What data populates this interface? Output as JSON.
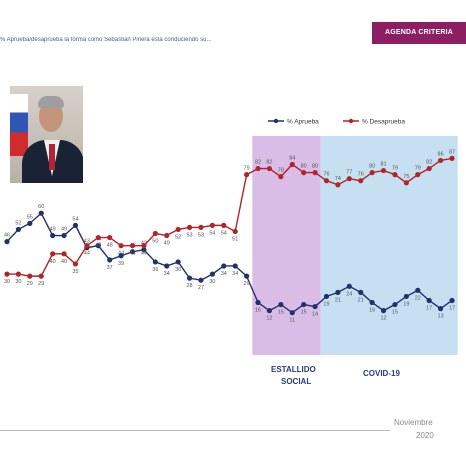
{
  "header": {
    "badge": "AGENDA CRITERIA",
    "subtitle": "% Aprueba/desaprueba la forma como Sebastián Piñera está conduciendo su..."
  },
  "footer": {
    "date_month": "Noviembre",
    "date_year": "2020"
  },
  "colors": {
    "aprueba": "#23306e",
    "desaprueba": "#b0242a",
    "estallido_band": "#d9bde6",
    "covid_band": "#c6e0f1",
    "badge": "#8c1f63"
  },
  "chart_data": {
    "type": "line",
    "legend_position": "top-right",
    "grid": false,
    "x": [
      1,
      2,
      3,
      4,
      5,
      6,
      7,
      8,
      9,
      10,
      11,
      12,
      13,
      14,
      15,
      16,
      17,
      18,
      19,
      20,
      21,
      22,
      23,
      24,
      25,
      26,
      27,
      28,
      29,
      30,
      31,
      32,
      33,
      34,
      35,
      36,
      37,
      38,
      39,
      40
    ],
    "series": [
      {
        "name": "% Aprueba",
        "color": "#23306e",
        "values": [
          46,
          52,
          55,
          60,
          49,
          49,
          54,
          43,
          44,
          37,
          39,
          41,
          42,
          36,
          34,
          36,
          28,
          27,
          30,
          34,
          34,
          29,
          16,
          12,
          15,
          11,
          15,
          14,
          19,
          21,
          24,
          21,
          16,
          12,
          15,
          19,
          22,
          17,
          13,
          17
        ],
        "labels": [
          "46",
          "52",
          "55",
          "60",
          "49",
          "49",
          "54",
          "43",
          "44",
          "37",
          "39",
          "41",
          "42",
          "36",
          "34",
          "36",
          "28",
          "27",
          "30",
          "34",
          "34",
          "29",
          "16",
          "12",
          "15",
          "11",
          "15",
          "14",
          "19",
          "21",
          "24",
          "21",
          "16",
          "12",
          "15",
          "19",
          "22",
          "17",
          "13",
          "17"
        ]
      },
      {
        "name": "% Desaprueba",
        "color": "#b0242a",
        "values": [
          30,
          30,
          29,
          29,
          40,
          40,
          35,
          44,
          48,
          48,
          44,
          44,
          44,
          50,
          49,
          52,
          53,
          53,
          54,
          54,
          51,
          79,
          82,
          82,
          78,
          84,
          80,
          80,
          76,
          74,
          77,
          76,
          80,
          81,
          79,
          75,
          79,
          82,
          86,
          87
        ],
        "labels": [
          "30",
          "30",
          "29",
          "29",
          "40",
          "40",
          "35",
          "44",
          "48",
          "48",
          "44",
          "44",
          "44",
          "50",
          "49",
          "52",
          "53",
          "53",
          "54",
          "54",
          "51",
          "79",
          "82",
          "82",
          "78",
          "84",
          "80",
          "80",
          "76",
          "74",
          "77",
          "76",
          "80",
          "81",
          "79",
          "75",
          "79",
          "82",
          "86",
          "87"
        ]
      }
    ],
    "ylim": [
      0,
      100
    ],
    "annotations": [
      {
        "label_line1": "ESTALLIDO",
        "label_line2": "SOCIAL",
        "x_start": 22.5,
        "x_end": 28.5
      },
      {
        "label_line1": "COVID-19",
        "label_line2": "",
        "x_start": 28.5,
        "x_end": 40.5
      }
    ]
  }
}
